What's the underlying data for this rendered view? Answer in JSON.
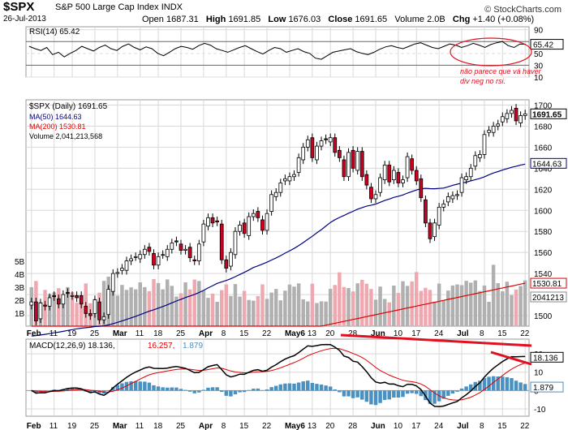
{
  "header": {
    "symbol": "$SPX",
    "index_name": "S&P 500 Large Cap Index",
    "exchange": "INDX",
    "date": "26-Jul-2013",
    "open_label": "Open",
    "open": "1687.31",
    "high_label": "High",
    "high": "1691.85",
    "low_label": "Low",
    "low": "1676.03",
    "close_label": "Close",
    "close": "1691.65",
    "volume_label": "Volume",
    "volume": "2.0B",
    "chg_label": "Chg",
    "chg": "+1.40 (+0.08%)",
    "watermark": "© StockCharts.com"
  },
  "colors": {
    "up": "#ffffff",
    "down": "#cc0022",
    "ma50": "#000080",
    "ma200": "#dd0000",
    "volume_up": "#b0b0b0",
    "volume_down": "#f0a8b0",
    "macd_line": "#000000",
    "signal_line": "#dd0000",
    "histogram": "#4a90c0",
    "annotation": "#e01020",
    "grid": "#d8d8d8"
  },
  "chart_data": [
    {
      "type": "line",
      "title": "RSI(14) 65.42",
      "ylim": [
        10,
        95
      ],
      "yticks": [
        10,
        30,
        50,
        70,
        90
      ],
      "last_label": "65.42",
      "values": [
        62,
        58,
        55,
        60,
        48,
        52,
        44,
        50,
        55,
        62,
        58,
        54,
        60,
        64,
        58,
        55,
        62,
        66,
        60,
        56,
        61,
        58,
        50,
        46,
        52,
        58,
        62,
        60,
        57,
        63,
        67,
        64,
        58,
        55,
        52,
        56,
        60,
        63,
        58,
        53,
        49,
        55,
        60,
        58,
        52,
        55,
        58,
        53,
        50,
        42,
        40,
        46,
        52,
        54,
        56,
        58,
        53,
        50,
        48,
        52,
        57,
        61,
        63,
        60,
        58,
        62,
        66,
        68,
        64,
        60,
        58,
        62,
        66,
        64,
        60,
        63,
        67,
        64,
        60,
        65,
        68,
        70,
        63,
        60,
        66,
        65.42
      ]
    },
    {
      "type": "candlestick",
      "title": "$SPX (Daily) 1691.65",
      "ylim": [
        1490,
        1705
      ],
      "yticks": [
        1500,
        1520,
        1540,
        1560,
        1580,
        1600,
        1620,
        1640,
        1660,
        1680,
        1700
      ],
      "x_labels": [
        "Feb",
        "11",
        "19",
        "25",
        "Mar",
        "11",
        "18",
        "25",
        "Apr",
        "8",
        "15",
        "22",
        "May6",
        "13",
        "20",
        "28",
        "Jun",
        "10",
        "17",
        "24",
        "Jul",
        "8",
        "15",
        "22"
      ],
      "close": [
        1513,
        1495,
        1512,
        1509,
        1517,
        1518,
        1511,
        1520,
        1521,
        1519,
        1517,
        1511,
        1502,
        1500,
        1515,
        1496,
        1499,
        1525,
        1540,
        1541,
        1545,
        1552,
        1554,
        1556,
        1558,
        1563,
        1561,
        1548,
        1556,
        1558,
        1563,
        1569,
        1570,
        1562,
        1563,
        1555,
        1552,
        1568,
        1587,
        1593,
        1588,
        1589,
        1553,
        1545,
        1560,
        1580,
        1586,
        1578,
        1594,
        1597,
        1593,
        1581,
        1597,
        1615,
        1617,
        1626,
        1630,
        1632,
        1634,
        1650,
        1660,
        1667,
        1650,
        1661,
        1666,
        1667,
        1669,
        1655,
        1650,
        1632,
        1655,
        1640,
        1656,
        1632,
        1624,
        1611,
        1615,
        1631,
        1643,
        1627,
        1638,
        1626,
        1629,
        1651,
        1638,
        1628,
        1612,
        1588,
        1573,
        1588,
        1603,
        1606,
        1613,
        1614,
        1615,
        1631,
        1632,
        1640,
        1652,
        1653,
        1672,
        1676,
        1680,
        1682,
        1689,
        1692,
        1695,
        1685,
        1690,
        1691.65
      ],
      "ma50": {
        "name": "MA(50)",
        "last": "1644.63"
      },
      "ma200": {
        "name": "MA(200)",
        "last": "1530.81"
      },
      "volume": {
        "name": "Volume",
        "last": "2,041,213,568",
        "last_label": "2041213",
        "ylim_label": [
          "1B",
          "2B",
          "3B",
          "4B",
          "5B"
        ]
      },
      "annotation": "não parece que vá haver div neg no rsi."
    },
    {
      "type": "macd",
      "title": "MACD(12,26,9) 18.136, 16.257, 1.879",
      "macd_params": "MACD(12,26,9)",
      "macd_value": "18.136",
      "signal_value": "16.257",
      "hist_value": "1.879",
      "ylim": [
        -14,
        28
      ],
      "yticks": [
        -10,
        0,
        10,
        20
      ],
      "last_macd_label": "18.136",
      "last_hist_label": "1.879"
    }
  ]
}
